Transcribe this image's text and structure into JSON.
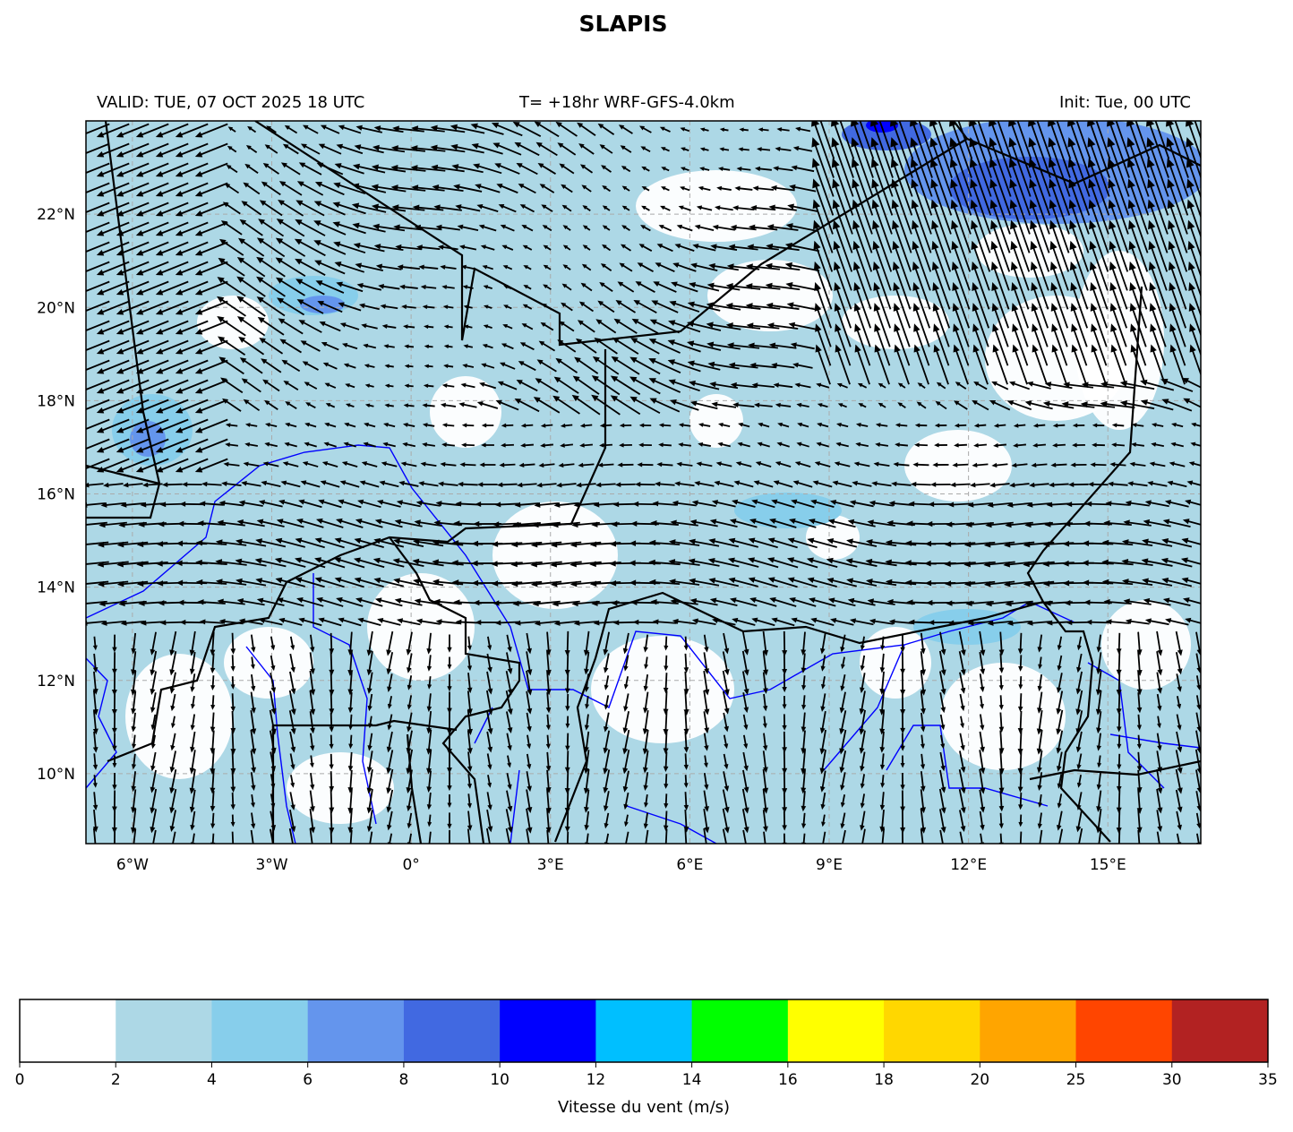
{
  "title": "SLAPIS",
  "header": {
    "valid": "VALID: TUE, 07 OCT 2025 18 UTC",
    "model": "T= +18hr WRF-GFS-4.0km",
    "init": "Init: Tue, 00 UTC"
  },
  "map": {
    "lon_range": [
      -7,
      17
    ],
    "lat_range": [
      8.5,
      24
    ],
    "lon_ticks": [
      {
        "v": -6,
        "label": "6°W"
      },
      {
        "v": -3,
        "label": "3°W"
      },
      {
        "v": 0,
        "label": "0°"
      },
      {
        "v": 3,
        "label": "3°E"
      },
      {
        "v": 6,
        "label": "6°E"
      },
      {
        "v": 9,
        "label": "9°E"
      },
      {
        "v": 12,
        "label": "12°E"
      },
      {
        "v": 15,
        "label": "15°E"
      }
    ],
    "lat_ticks": [
      {
        "v": 22,
        "label": "22°N"
      },
      {
        "v": 20,
        "label": "20°N"
      },
      {
        "v": 18,
        "label": "18°N"
      },
      {
        "v": 16,
        "label": "16°N"
      },
      {
        "v": 14,
        "label": "14°N"
      },
      {
        "v": 12,
        "label": "12°N"
      },
      {
        "v": 10,
        "label": "10°N"
      }
    ],
    "grid": true,
    "border_color": "#000000",
    "river_color": "#0000ff"
  },
  "colorbar": {
    "label": "Vitesse du vent (m/s)",
    "levels": [
      "0",
      "2",
      "4",
      "6",
      "8",
      "10",
      "12",
      "14",
      "16",
      "18",
      "20",
      "25",
      "30",
      "35"
    ],
    "colors": [
      "#ffffff",
      "#add8e6",
      "#87ceeb",
      "#6495ed",
      "#4169e1",
      "#0000ff",
      "#00bfff",
      "#00ff00",
      "#ffff00",
      "#ffd700",
      "#ffa500",
      "#ff4500",
      "#b22222"
    ]
  }
}
